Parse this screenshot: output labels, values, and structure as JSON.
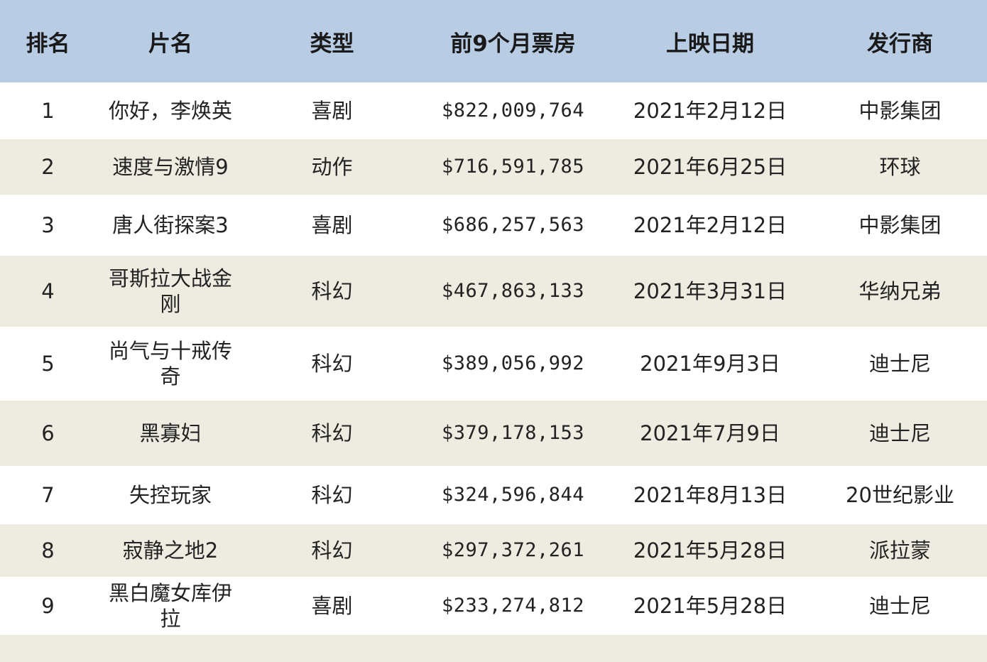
{
  "table": {
    "headers": [
      "排名",
      "片名",
      "类型",
      "前9个月票房",
      "上映日期",
      "发行商"
    ],
    "rows": [
      {
        "rank": "1",
        "title": "你好，李焕英",
        "genre": "喜剧",
        "box_office": "$822,009,764",
        "release_date": "2021年2月12日",
        "distributor": "中影集团"
      },
      {
        "rank": "2",
        "title": "速度与激情9",
        "genre": "动作",
        "box_office": "$716,591,785",
        "release_date": "2021年6月25日",
        "distributor": "环球"
      },
      {
        "rank": "3",
        "title": "唐人街探案3",
        "genre": "喜剧",
        "box_office": "$686,257,563",
        "release_date": "2021年2月12日",
        "distributor": "中影集团"
      },
      {
        "rank": "4",
        "title": "哥斯拉大战金刚",
        "genre": "科幻",
        "box_office": "$467,863,133",
        "release_date": "2021年3月31日",
        "distributor": "华纳兄弟"
      },
      {
        "rank": "5",
        "title": "尚气与十戒传奇",
        "genre": "科幻",
        "box_office": "$389,056,992",
        "release_date": "2021年9月3日",
        "distributor": "迪士尼"
      },
      {
        "rank": "6",
        "title": "黑寡妇",
        "genre": "科幻",
        "box_office": "$379,178,153",
        "release_date": "2021年7月9日",
        "distributor": "迪士尼"
      },
      {
        "rank": "7",
        "title": "失控玩家",
        "genre": "科幻",
        "box_office": "$324,596,844",
        "release_date": "2021年8月13日",
        "distributor": "20世纪影业"
      },
      {
        "rank": "8",
        "title": "寂静之地2",
        "genre": "科幻",
        "box_office": "$297,372,261",
        "release_date": "2021年5月28日",
        "distributor": "派拉蒙"
      },
      {
        "rank": "9",
        "title": "黑白魔女库伊拉",
        "genre": "喜剧",
        "box_office": "$233,274,812",
        "release_date": "2021年5月28日",
        "distributor": "迪士尼"
      }
    ]
  },
  "colors": {
    "header_bg": "#b8cce4",
    "row_alt_bg": "#eeece1",
    "row_bg": "#ffffff"
  }
}
